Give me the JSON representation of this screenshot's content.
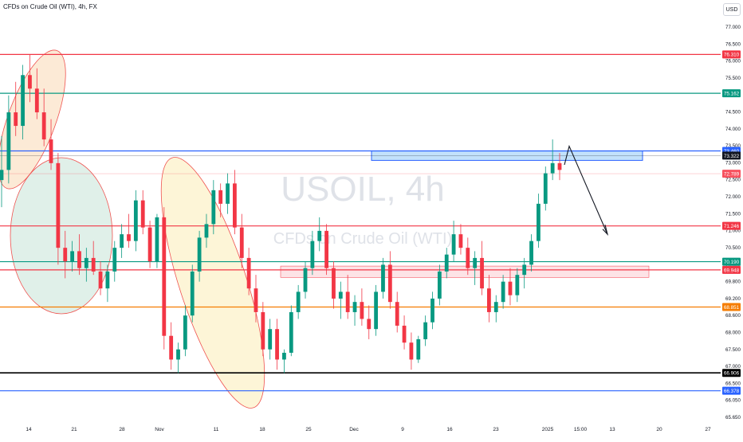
{
  "header": {
    "title": "CFDs on Crude Oil (WTI), 4h, FX",
    "currency": "USD"
  },
  "watermark": {
    "symbol": "USOIL, 4h",
    "description": "CFDs on Crude Oil (WTI)"
  },
  "chart_data": {
    "type": "candlestick",
    "y_axis_ticks": [
      "77.000",
      "76.500",
      "76.000",
      "75.500",
      "75.000",
      "74.500",
      "74.000",
      "73.500",
      "73.000",
      "72.500",
      "72.000",
      "71.500",
      "71.000",
      "70.500",
      "70.000",
      "69.800",
      "69.200",
      "68.600",
      "68.000",
      "67.500",
      "67.000",
      "66.500",
      "66.050",
      "65.650"
    ],
    "ylim": [
      65.5,
      77.4
    ],
    "x_axis_ticks": [
      "14",
      "21",
      "28",
      "Nov",
      "11",
      "18",
      "25",
      "Dec",
      "9",
      "16",
      "23",
      "2025",
      "15:00",
      "13",
      "20",
      "27"
    ],
    "price_lines": [
      {
        "label": "76.310",
        "value": 76.31,
        "color": "#f23645"
      },
      {
        "label": "75.162",
        "value": 75.162,
        "color": "#089981"
      },
      {
        "label": "73.460",
        "value": 73.46,
        "color": "#2962ff"
      },
      {
        "label": "73.322",
        "value": 73.322,
        "color": "#131722"
      },
      {
        "label": "72.789",
        "value": 72.789,
        "color": "#f7525f"
      },
      {
        "label": "71.246",
        "value": 71.246,
        "color": "#f23645"
      },
      {
        "label": "70.190",
        "value": 70.19,
        "color": "#089981"
      },
      {
        "label": "69.948",
        "value": 69.948,
        "color": "#f23645"
      },
      {
        "label": "68.851",
        "value": 68.851,
        "color": "#f57c00"
      },
      {
        "label": "66.906",
        "value": 66.906,
        "color": "#000000"
      },
      {
        "label": "66.378",
        "value": 66.378,
        "color": "#2962ff"
      }
    ],
    "candles": [
      [
        72.6,
        73.9,
        71.8,
        72.9
      ],
      [
        72.9,
        75.1,
        72.5,
        74.6
      ],
      [
        74.6,
        75.5,
        73.9,
        74.2
      ],
      [
        74.2,
        76.0,
        73.8,
        75.7
      ],
      [
        75.7,
        76.3,
        74.9,
        75.3
      ],
      [
        75.3,
        75.9,
        74.4,
        74.6
      ],
      [
        74.6,
        75.3,
        73.6,
        73.8
      ],
      [
        73.8,
        74.4,
        72.9,
        73.1
      ],
      [
        73.1,
        73.4,
        70.1,
        70.6
      ],
      [
        70.6,
        71.1,
        69.7,
        70.2
      ],
      [
        70.2,
        70.8,
        69.9,
        70.5
      ],
      [
        70.5,
        71.0,
        69.8,
        70.0
      ],
      [
        70.0,
        70.6,
        69.6,
        70.3
      ],
      [
        70.3,
        70.8,
        69.8,
        69.9
      ],
      [
        69.9,
        70.2,
        69.2,
        69.4
      ],
      [
        69.4,
        70.1,
        69.0,
        69.9
      ],
      [
        69.9,
        70.8,
        69.6,
        70.6
      ],
      [
        70.6,
        71.3,
        70.3,
        71.0
      ],
      [
        71.0,
        71.6,
        70.6,
        70.8
      ],
      [
        70.8,
        72.3,
        70.5,
        72.0
      ],
      [
        72.0,
        72.3,
        71.0,
        71.2
      ],
      [
        71.2,
        71.4,
        70.0,
        70.2
      ],
      [
        70.2,
        71.6,
        70.0,
        71.5
      ],
      [
        71.5,
        71.8,
        67.6,
        68.0
      ],
      [
        68.0,
        68.4,
        67.0,
        67.3
      ],
      [
        67.3,
        67.8,
        66.9,
        67.6
      ],
      [
        67.6,
        68.9,
        67.4,
        68.6
      ],
      [
        68.6,
        70.1,
        68.4,
        69.9
      ],
      [
        69.9,
        71.1,
        69.6,
        70.9
      ],
      [
        70.9,
        71.6,
        70.6,
        71.3
      ],
      [
        71.3,
        72.6,
        71.0,
        72.3
      ],
      [
        72.3,
        72.5,
        71.5,
        71.9
      ],
      [
        71.9,
        72.8,
        71.6,
        72.5
      ],
      [
        72.5,
        72.9,
        71.0,
        71.2
      ],
      [
        71.2,
        71.6,
        70.0,
        70.3
      ],
      [
        70.3,
        70.6,
        69.2,
        69.4
      ],
      [
        69.4,
        69.8,
        68.4,
        68.7
      ],
      [
        68.7,
        69.0,
        67.4,
        67.6
      ],
      [
        67.6,
        68.5,
        67.3,
        68.2
      ],
      [
        68.2,
        68.5,
        67.0,
        67.3
      ],
      [
        67.3,
        67.6,
        66.9,
        67.5
      ],
      [
        67.5,
        68.9,
        67.4,
        68.7
      ],
      [
        68.7,
        69.5,
        68.5,
        69.3
      ],
      [
        69.3,
        70.2,
        69.1,
        70.0
      ],
      [
        70.0,
        71.1,
        69.8,
        70.8
      ],
      [
        70.8,
        71.5,
        70.5,
        71.1
      ],
      [
        71.1,
        71.3,
        69.8,
        70.0
      ],
      [
        70.0,
        70.2,
        68.8,
        69.1
      ],
      [
        69.1,
        69.6,
        68.5,
        69.3
      ],
      [
        69.3,
        69.8,
        68.5,
        68.7
      ],
      [
        68.7,
        69.2,
        68.3,
        69.0
      ],
      [
        69.0,
        69.4,
        68.3,
        68.5
      ],
      [
        68.5,
        68.9,
        67.9,
        68.2
      ],
      [
        68.2,
        69.5,
        68.0,
        69.3
      ],
      [
        69.3,
        70.3,
        69.1,
        70.1
      ],
      [
        70.1,
        70.5,
        68.8,
        69.0
      ],
      [
        69.0,
        69.3,
        68.1,
        68.3
      ],
      [
        68.3,
        68.6,
        67.6,
        67.8
      ],
      [
        67.8,
        68.1,
        67.0,
        67.3
      ],
      [
        67.3,
        68.0,
        67.2,
        67.9
      ],
      [
        67.9,
        68.6,
        67.7,
        68.4
      ],
      [
        68.4,
        69.3,
        68.2,
        69.1
      ],
      [
        69.1,
        70.1,
        68.9,
        69.9
      ],
      [
        69.9,
        70.6,
        69.7,
        70.4
      ],
      [
        70.4,
        71.4,
        70.2,
        71.0
      ],
      [
        71.0,
        71.3,
        70.4,
        70.6
      ],
      [
        70.6,
        70.9,
        69.8,
        70.0
      ],
      [
        70.0,
        70.5,
        69.5,
        70.3
      ],
      [
        70.3,
        70.8,
        69.2,
        69.4
      ],
      [
        69.4,
        69.8,
        68.4,
        68.7
      ],
      [
        68.7,
        69.2,
        68.4,
        69.0
      ],
      [
        69.0,
        69.8,
        68.8,
        69.6
      ],
      [
        69.6,
        70.0,
        68.9,
        69.2
      ],
      [
        69.2,
        70.0,
        69.0,
        69.8
      ],
      [
        69.8,
        70.3,
        69.4,
        70.1
      ],
      [
        70.1,
        71.0,
        69.9,
        70.8
      ],
      [
        70.8,
        72.2,
        70.6,
        71.9
      ],
      [
        71.9,
        73.0,
        71.7,
        72.8
      ],
      [
        72.8,
        73.8,
        72.6,
        73.1
      ],
      [
        73.1,
        73.4,
        72.6,
        72.9
      ]
    ],
    "drawings": {
      "ellipses": [
        {
          "cx": 0.05,
          "cy": 0.66,
          "rx": 0.52,
          "ry": 0.36,
          "rot": 20,
          "fill": "#fbe3c8"
        },
        {
          "cx": 0.09,
          "cy": 0.52,
          "rx": 0.68,
          "ry": 0.75,
          "rot": 0,
          "fill": "#d5ebe2"
        },
        {
          "cx": 0.3,
          "cy": 0.49,
          "rx": 0.82,
          "ry": 0.6,
          "rot": -18,
          "fill": "#fcf1c9"
        }
      ],
      "zones": [
        {
          "label": "resistance-zone",
          "color": "#bbdefb",
          "border": "#2962ff"
        },
        {
          "label": "support-zone",
          "color": "#fde0e3",
          "border": "#f7525f"
        }
      ]
    }
  }
}
